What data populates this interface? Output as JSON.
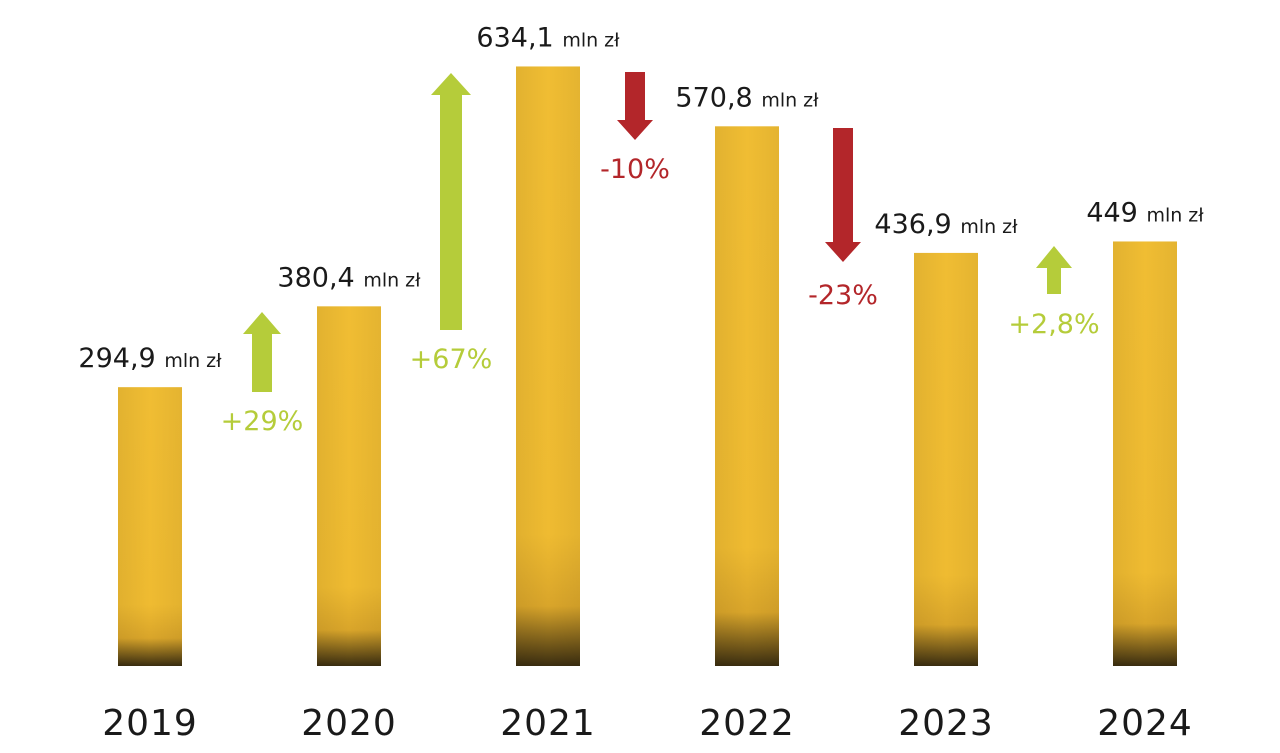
{
  "chart_data": {
    "type": "bar",
    "categories": [
      "2019",
      "2020",
      "2021",
      "2022",
      "2023",
      "2024"
    ],
    "values": [
      294.9,
      380.4,
      634.1,
      570.8,
      436.9,
      449
    ],
    "value_labels": [
      "294,9",
      "380,4",
      "634,1",
      "570,8",
      "436,9",
      "449"
    ],
    "unit": "mln zł",
    "title": "",
    "xlabel": "",
    "ylabel": "",
    "grid": false,
    "legend": "none",
    "changes": [
      {
        "label": "+29%",
        "direction": "up"
      },
      {
        "label": "+67%",
        "direction": "up"
      },
      {
        "label": "-10%",
        "direction": "down"
      },
      {
        "label": "-23%",
        "direction": "down"
      },
      {
        "label": "+2,8%",
        "direction": "up"
      }
    ]
  },
  "colors": {
    "bar_fill": "#f0bd33",
    "bar_shadow": "#3a2d10",
    "up_arrow": "#b5cc3a",
    "down_arrow": "#b3262a",
    "text": "#1a1a1a"
  }
}
